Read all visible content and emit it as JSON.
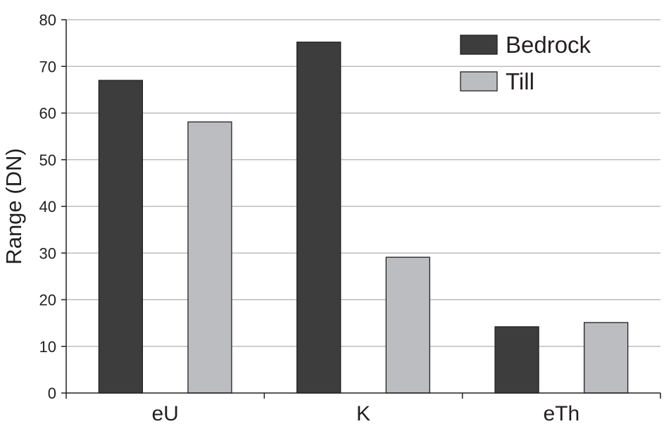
{
  "chart_data": {
    "type": "bar",
    "categories": [
      "eU",
      "K",
      "eTh"
    ],
    "series": [
      {
        "name": "Bedrock",
        "values": [
          67,
          75.2,
          14.2
        ],
        "color": "#3d3d3d"
      },
      {
        "name": "Till",
        "values": [
          58.1,
          29.1,
          15.1
        ],
        "color": "#bcbdc0"
      }
    ],
    "xlabel": "",
    "ylabel": "Range (DN)",
    "ylim": [
      0,
      80
    ],
    "yticks": [
      0,
      10,
      20,
      30,
      40,
      50,
      60,
      70,
      80
    ],
    "grid": true,
    "legend_position": "top-right"
  }
}
